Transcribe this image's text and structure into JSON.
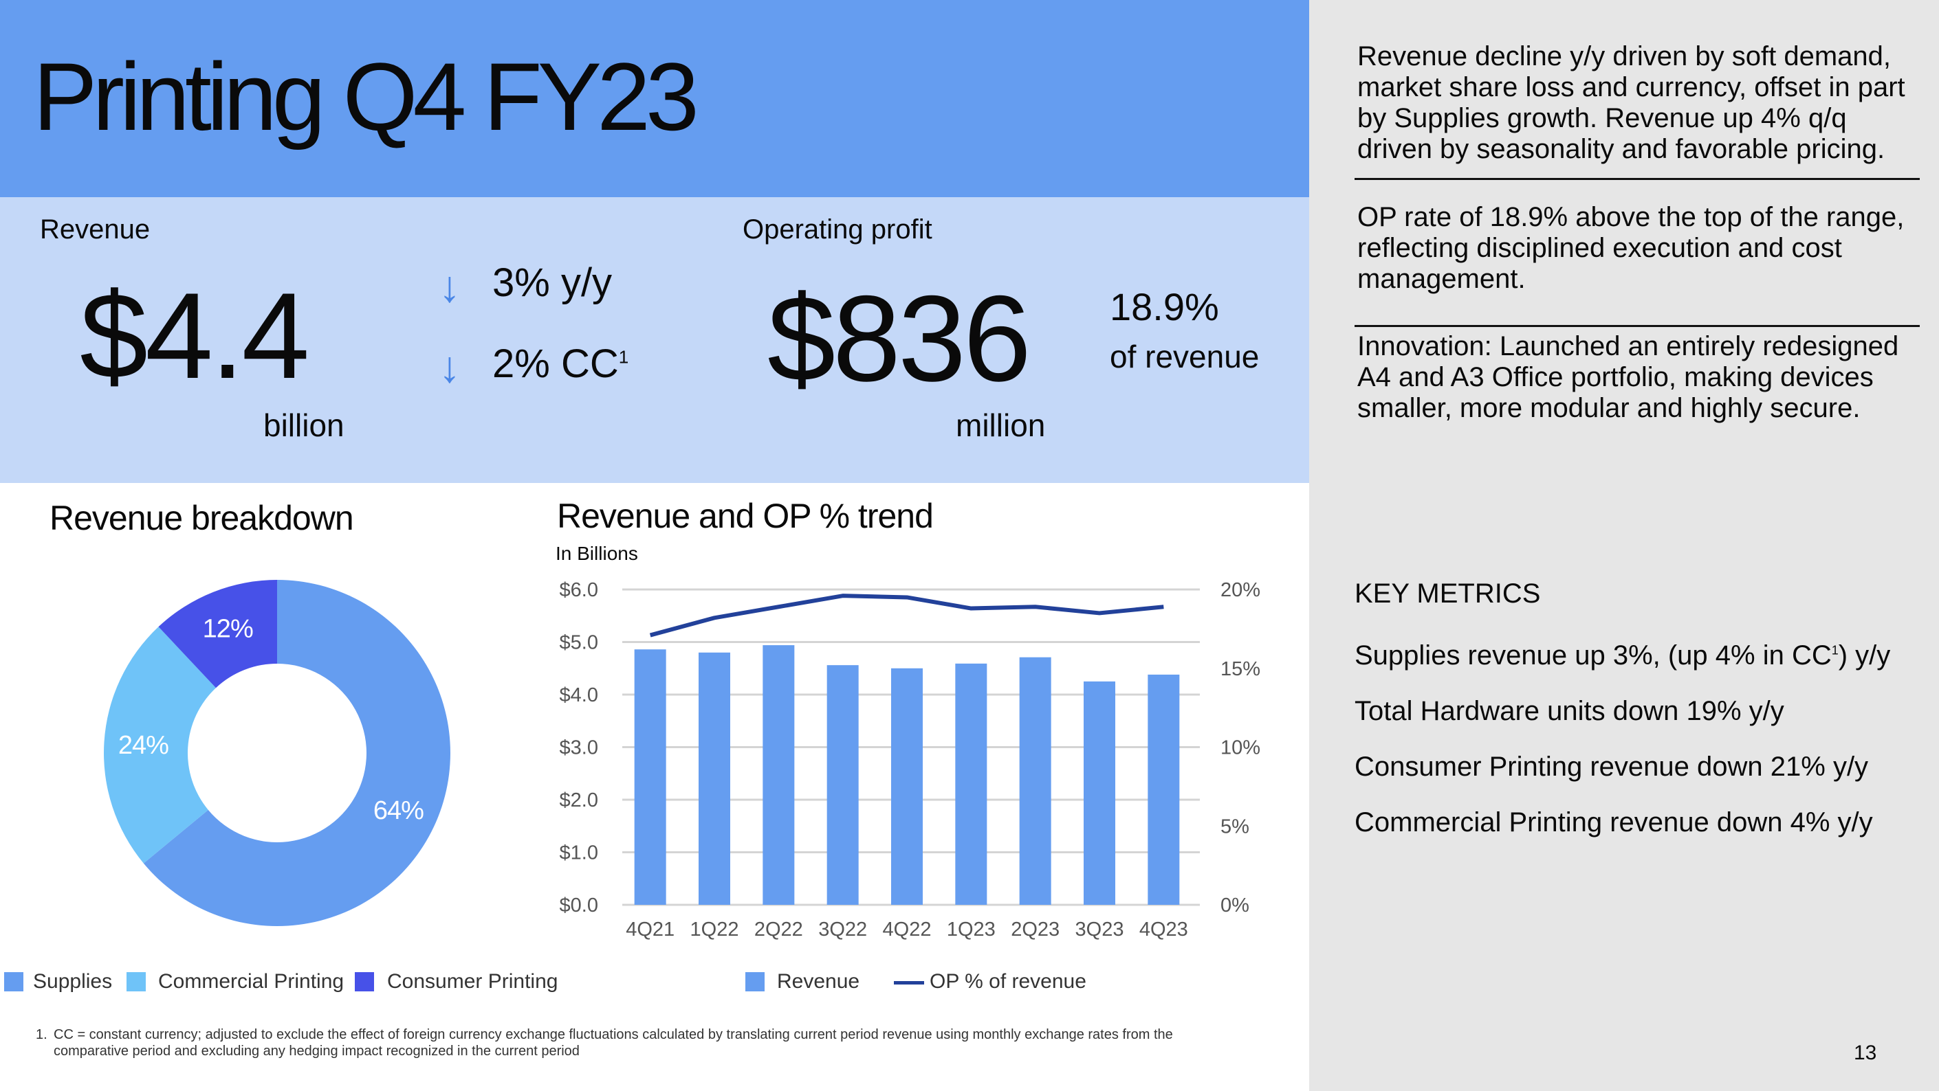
{
  "header": {
    "title": "Printing Q4 FY23"
  },
  "kpis": {
    "revenue": {
      "label": "Revenue",
      "value": "$4.4",
      "unit": "billion",
      "delta_yy": "3% y/y",
      "delta_cc": "2% CC",
      "cc_note": "1"
    },
    "operating_profit": {
      "label": "Operating profit",
      "value": "$836",
      "unit": "million",
      "rate": "18.9%",
      "rate_label": "of revenue"
    }
  },
  "commentary": {
    "p1": "Revenue decline y/y driven by soft demand, market share loss and currency, offset in part by Supplies growth. Revenue up 4% q/q driven by seasonality and favorable pricing.",
    "p2": "OP rate of 18.9% above the top of the range, reflecting disciplined execution and cost management.",
    "p3": "Innovation: Launched an entirely redesigned A4 and A3 Office portfolio, making devices smaller, more modular and highly secure."
  },
  "key_metrics": {
    "title": "KEY METRICS",
    "m1_pre": "Supplies revenue up 3%, (up 4% in CC",
    "m1_sup": "1",
    "m1_post": ") y/y",
    "m2": "Total Hardware units down 19% y/y",
    "m3": "Consumer Printing revenue down 21% y/y",
    "m4": "Commercial Printing revenue down 4% y/y"
  },
  "colors": {
    "header_bg": "#659df0",
    "kpi_bg": "#c4d8f8",
    "supplies": "#659df0",
    "commercial": "#6fc3f8",
    "consumer": "#4751e8",
    "op_line": "#22419a",
    "arrow": "#4a86e6"
  },
  "chart_data": [
    {
      "type": "pie",
      "title": "Revenue breakdown",
      "donut": true,
      "slices": [
        {
          "label": "Supplies",
          "value": 64,
          "text": "64%"
        },
        {
          "label": "Commercial Printing",
          "value": 24,
          "text": "24%"
        },
        {
          "label": "Consumer Printing",
          "value": 12,
          "text": "12%"
        }
      ]
    },
    {
      "type": "bar",
      "title": "Revenue and OP % trend",
      "subtitle": "In Billions",
      "categories": [
        "4Q21",
        "1Q22",
        "2Q22",
        "3Q22",
        "4Q22",
        "1Q23",
        "2Q23",
        "3Q23",
        "4Q23"
      ],
      "series": [
        {
          "name": "Revenue",
          "type": "bar",
          "axis": "left",
          "values": [
            4.86,
            4.8,
            4.94,
            4.56,
            4.5,
            4.59,
            4.71,
            4.25,
            4.38
          ]
        },
        {
          "name": "OP % of revenue",
          "type": "line",
          "axis": "right",
          "values": [
            17.1,
            18.2,
            18.9,
            19.6,
            19.5,
            18.8,
            18.9,
            18.5,
            18.9
          ]
        }
      ],
      "ylim": [
        0,
        6
      ],
      "yticks": [
        "$0.0",
        "$1.0",
        "$2.0",
        "$3.0",
        "$4.0",
        "$5.0",
        "$6.0"
      ],
      "y2lim": [
        0,
        20
      ],
      "y2ticks": [
        "0%",
        "5%",
        "10%",
        "15%",
        "20%"
      ],
      "grid": true
    }
  ],
  "footnote": {
    "marker": "1.",
    "line1": "CC = constant currency; adjusted to exclude the effect of foreign currency exchange fluctuations calculated by translating current period revenue using monthly exchange rates from the",
    "line2": "comparative period and excluding any hedging impact recognized in the current period"
  },
  "page_number": "13"
}
